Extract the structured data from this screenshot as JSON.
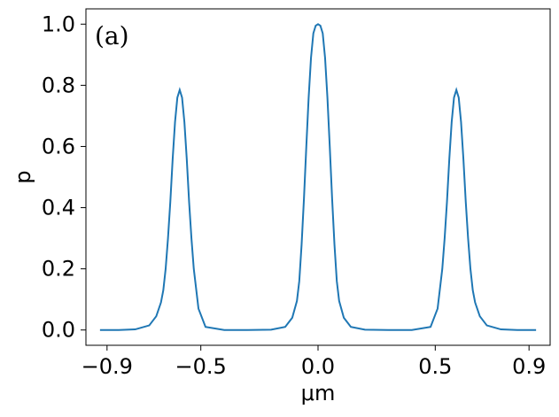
{
  "chart_data": {
    "type": "line",
    "panel_label": "(a)",
    "xlabel": "μm",
    "ylabel": "p",
    "xlim": [
      -0.99,
      0.99
    ],
    "ylim": [
      -0.05,
      1.05
    ],
    "xticks": [
      -0.9,
      -0.5,
      0.0,
      0.5,
      0.9
    ],
    "xtick_labels": [
      "−0.9",
      "−0.5",
      "0.0",
      "0.5",
      "0.9"
    ],
    "yticks": [
      0.0,
      0.2,
      0.4,
      0.6,
      0.8,
      1.0
    ],
    "ytick_labels": [
      "0.0",
      "0.2",
      "0.4",
      "0.6",
      "0.8",
      "1.0"
    ],
    "grid": false,
    "line_color": "#1f77b4",
    "series": [
      {
        "x": [
          -0.93,
          -0.85,
          -0.78,
          -0.72,
          -0.69,
          -0.67,
          -0.66,
          -0.65,
          -0.64,
          -0.63,
          -0.62,
          -0.61,
          -0.6,
          -0.59,
          -0.58,
          -0.57,
          -0.56,
          -0.55,
          -0.54,
          -0.53,
          -0.51,
          -0.48,
          -0.4,
          -0.3,
          -0.2,
          -0.14,
          -0.11,
          -0.09,
          -0.08,
          -0.07,
          -0.06,
          -0.05,
          -0.04,
          -0.03,
          -0.02,
          -0.01,
          0.0,
          0.01,
          0.02,
          0.03,
          0.04,
          0.05,
          0.06,
          0.07,
          0.08,
          0.09,
          0.11,
          0.14,
          0.2,
          0.3,
          0.4,
          0.48,
          0.51,
          0.53,
          0.54,
          0.55,
          0.56,
          0.57,
          0.58,
          0.59,
          0.6,
          0.61,
          0.62,
          0.63,
          0.64,
          0.65,
          0.66,
          0.67,
          0.69,
          0.72,
          0.78,
          0.85,
          0.93
        ],
        "y": [
          0.0,
          0.0,
          0.002,
          0.015,
          0.045,
          0.09,
          0.13,
          0.2,
          0.3,
          0.42,
          0.56,
          0.68,
          0.76,
          0.785,
          0.76,
          0.68,
          0.56,
          0.42,
          0.3,
          0.2,
          0.07,
          0.01,
          0.0,
          0.0,
          0.001,
          0.01,
          0.04,
          0.095,
          0.16,
          0.28,
          0.43,
          0.6,
          0.76,
          0.89,
          0.97,
          0.995,
          1.0,
          0.995,
          0.97,
          0.89,
          0.76,
          0.6,
          0.43,
          0.28,
          0.16,
          0.095,
          0.04,
          0.01,
          0.001,
          0.0,
          0.0,
          0.01,
          0.07,
          0.2,
          0.3,
          0.42,
          0.56,
          0.68,
          0.76,
          0.785,
          0.76,
          0.68,
          0.56,
          0.42,
          0.3,
          0.2,
          0.13,
          0.09,
          0.045,
          0.015,
          0.002,
          0.0,
          0.0
        ]
      }
    ]
  }
}
